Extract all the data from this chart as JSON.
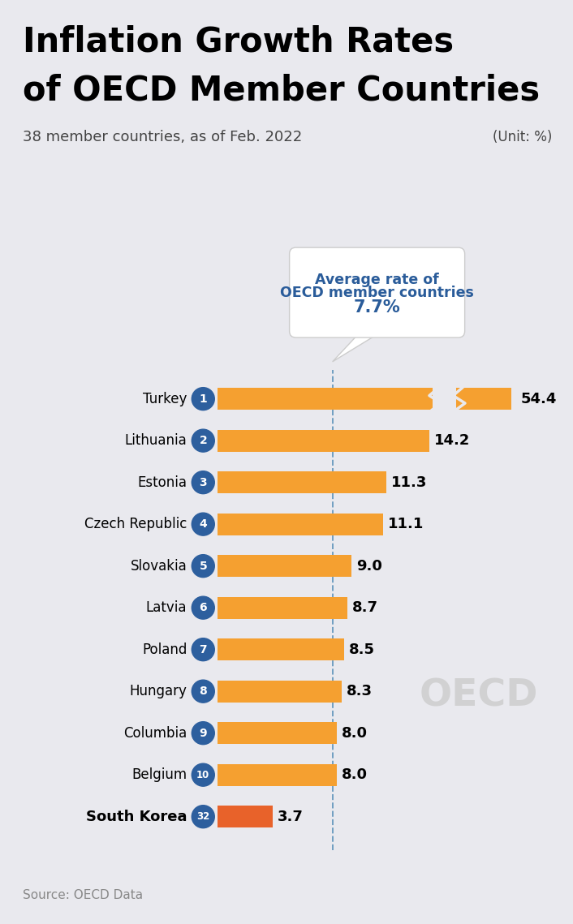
{
  "title_line1": "Inflation Growth Rates",
  "title_line2": "of OECD Member Countries",
  "subtitle": "38 member countries, as of Feb. 2022",
  "unit": "(Unit: %)",
  "source": "Source: OECD Data",
  "avg_label_line1": "Average rate of",
  "avg_label_line2": "OECD member countries",
  "avg_label_line3": "7.7%",
  "avg_value": 7.7,
  "background_color": "#e9e9ee",
  "bar_color": "#f5a030",
  "south_korea_bar_color": "#e8622a",
  "badge_color": "#2d5f9e",
  "badge_text_color": "#ffffff",
  "countries": [
    "Turkey",
    "Lithuania",
    "Estonia",
    "Czech Republic",
    "Slovakia",
    "Latvia",
    "Poland",
    "Hungary",
    "Columbia",
    "Belgium",
    "South Korea"
  ],
  "ranks": [
    "1",
    "2",
    "3",
    "4",
    "5",
    "6",
    "7",
    "8",
    "9",
    "10",
    "32"
  ],
  "values": [
    54.4,
    14.2,
    11.3,
    11.1,
    9.0,
    8.7,
    8.5,
    8.3,
    8.0,
    8.0,
    3.7
  ],
  "display_values": [
    "54.4",
    "14.2",
    "11.3",
    "11.1",
    "9.0",
    "8.7",
    "8.5",
    "8.3",
    "8.0",
    "8.0",
    "3.7"
  ],
  "bar_scale": 0.55,
  "callout_text_color": "#2a5c9a",
  "dashed_line_color": "#6a9abf"
}
